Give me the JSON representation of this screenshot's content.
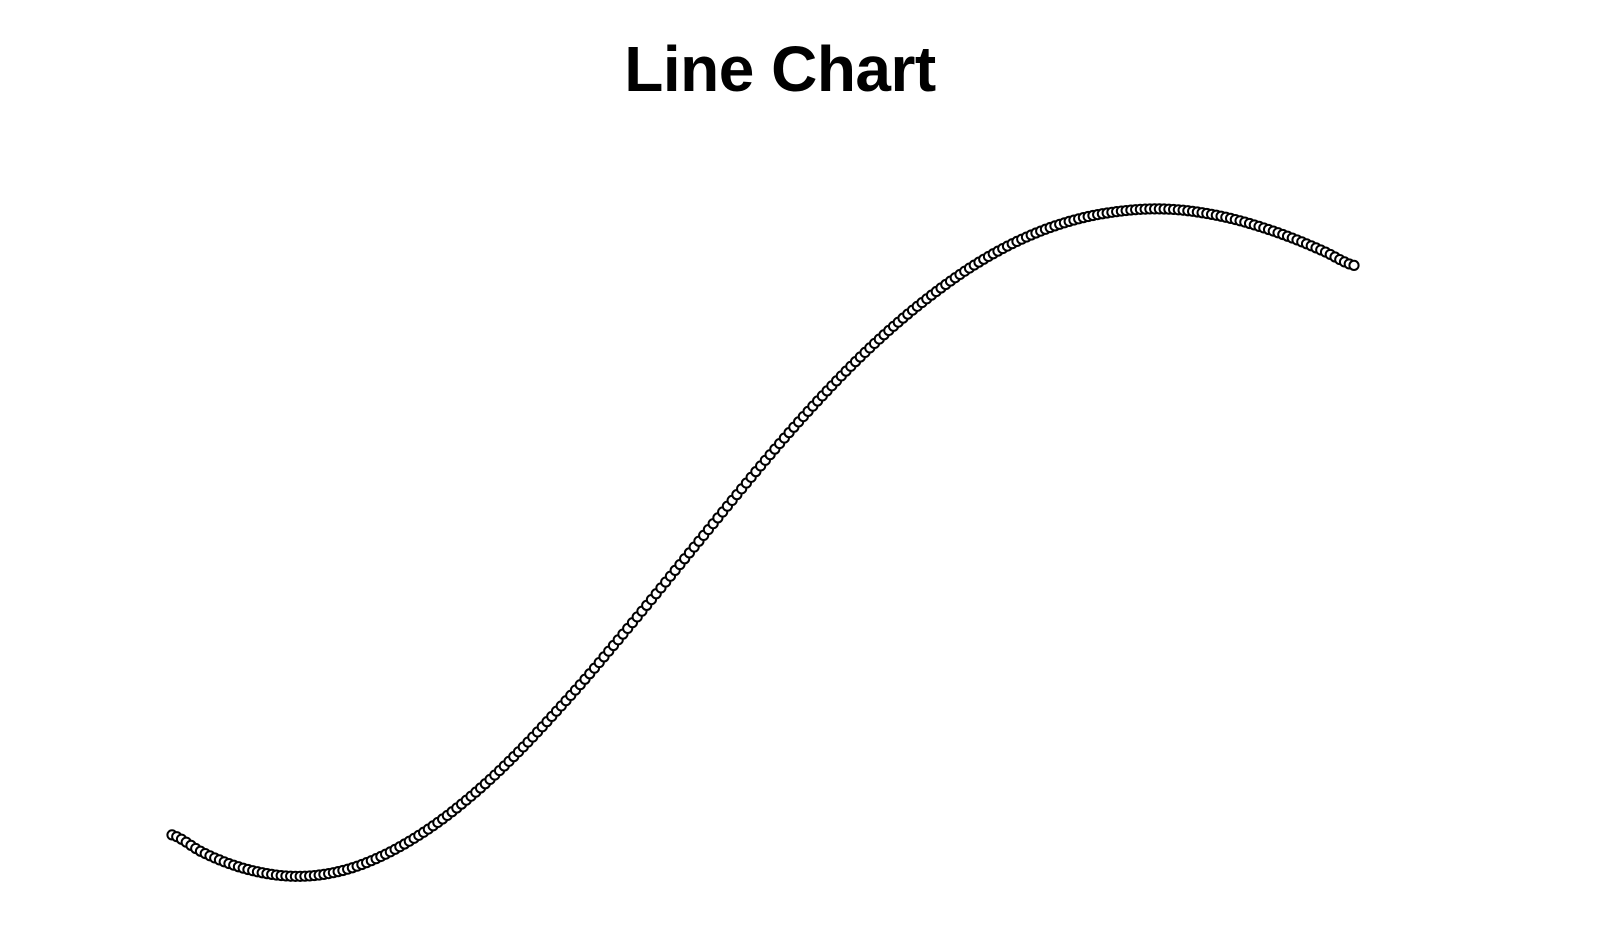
{
  "chart_data": {
    "type": "line",
    "title": "Line Chart",
    "xlabel": "",
    "ylabel": "",
    "grid": false,
    "axes_visible": false,
    "marker": "hollow-circle",
    "line_color": "#000000",
    "marker_fill": "#ffffff",
    "sample_count": 250,
    "x_range": [
      0,
      1
    ],
    "y_range": [
      -0.12,
      1.04
    ],
    "series": [
      {
        "points": [
          [
            0.0,
            0.0
          ],
          [
            0.025,
            -0.027
          ],
          [
            0.05,
            -0.047
          ],
          [
            0.075,
            -0.06
          ],
          [
            0.1,
            -0.066
          ],
          [
            0.125,
            -0.064
          ],
          [
            0.15,
            -0.054
          ],
          [
            0.175,
            -0.036
          ],
          [
            0.2,
            -0.011
          ],
          [
            0.225,
            0.02
          ],
          [
            0.25,
            0.057
          ],
          [
            0.275,
            0.099
          ],
          [
            0.3,
            0.146
          ],
          [
            0.325,
            0.197
          ],
          [
            0.35,
            0.25
          ],
          [
            0.375,
            0.306
          ],
          [
            0.4,
            0.363
          ],
          [
            0.425,
            0.421
          ],
          [
            0.45,
            0.479
          ],
          [
            0.475,
            0.537
          ],
          [
            0.5,
            0.594
          ],
          [
            0.525,
            0.649
          ],
          [
            0.55,
            0.701
          ],
          [
            0.575,
            0.75
          ],
          [
            0.6,
            0.795
          ],
          [
            0.625,
            0.836
          ],
          [
            0.65,
            0.873
          ],
          [
            0.675,
            0.906
          ],
          [
            0.7,
            0.934
          ],
          [
            0.725,
            0.957
          ],
          [
            0.75,
            0.975
          ],
          [
            0.775,
            0.988
          ],
          [
            0.8,
            0.996
          ],
          [
            0.825,
            1.0
          ],
          [
            0.85,
            0.999
          ],
          [
            0.875,
            0.993
          ],
          [
            0.9,
            0.983
          ],
          [
            0.925,
            0.969
          ],
          [
            0.95,
            0.952
          ],
          [
            0.975,
            0.932
          ],
          [
            1.0,
            0.91
          ]
        ]
      }
    ]
  }
}
